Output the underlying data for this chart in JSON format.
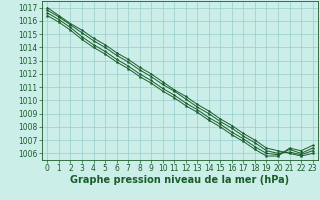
{
  "bg_color": "#cceee8",
  "grid_color": "#99cccc",
  "line_color": "#1a5c2a",
  "marker_color": "#1a5c2a",
  "xlabel": "Graphe pression niveau de la mer (hPa)",
  "xlabel_fontsize": 7.0,
  "tick_fontsize": 5.5,
  "xlim": [
    -0.5,
    23.5
  ],
  "ylim": [
    1005.5,
    1017.5
  ],
  "xticks": [
    0,
    1,
    2,
    3,
    4,
    5,
    6,
    7,
    8,
    9,
    10,
    11,
    12,
    13,
    14,
    15,
    16,
    17,
    18,
    19,
    20,
    21,
    22,
    23
  ],
  "yticks": [
    1006,
    1007,
    1008,
    1009,
    1010,
    1011,
    1012,
    1013,
    1014,
    1015,
    1016,
    1017
  ],
  "series": [
    [
      1017.0,
      1016.4,
      1015.8,
      1015.3,
      1014.7,
      1014.2,
      1013.6,
      1013.1,
      1012.5,
      1012.0,
      1011.4,
      1010.8,
      1010.3,
      1009.7,
      1009.2,
      1008.6,
      1008.1,
      1007.5,
      1007.0,
      1006.4,
      1006.2,
      1006.0,
      1005.8,
      1006.0
    ],
    [
      1016.8,
      1016.3,
      1015.7,
      1015.1,
      1014.5,
      1014.0,
      1013.4,
      1012.9,
      1012.3,
      1011.8,
      1011.2,
      1010.7,
      1010.1,
      1009.5,
      1009.0,
      1008.4,
      1007.9,
      1007.3,
      1006.8,
      1006.2,
      1006.0,
      1006.1,
      1005.9,
      1006.2
    ],
    [
      1016.6,
      1016.1,
      1015.5,
      1014.8,
      1014.2,
      1013.7,
      1013.1,
      1012.6,
      1012.0,
      1011.5,
      1010.9,
      1010.4,
      1009.8,
      1009.3,
      1008.7,
      1008.2,
      1007.6,
      1007.1,
      1006.5,
      1006.0,
      1005.9,
      1006.3,
      1006.0,
      1006.4
    ],
    [
      1016.4,
      1015.9,
      1015.3,
      1014.6,
      1014.0,
      1013.5,
      1012.9,
      1012.4,
      1011.8,
      1011.3,
      1010.7,
      1010.2,
      1009.6,
      1009.1,
      1008.5,
      1008.0,
      1007.4,
      1006.9,
      1006.3,
      1005.8,
      1005.8,
      1006.4,
      1006.2,
      1006.6
    ]
  ]
}
